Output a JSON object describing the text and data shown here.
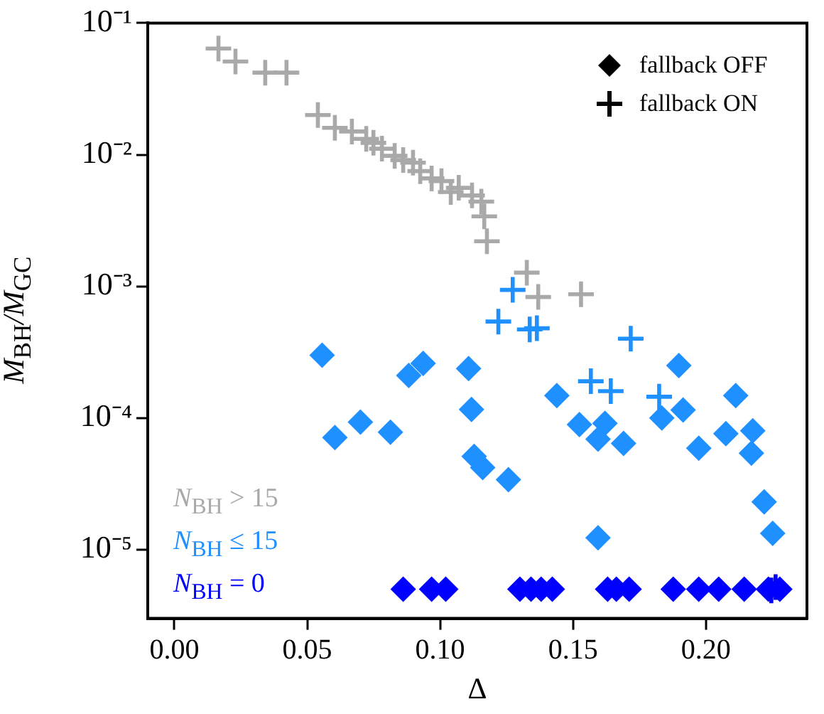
{
  "chart_data": {
    "type": "scatter",
    "xlabel": "Δ",
    "ylabel": "M$_{BH}$/M$_{GC}$",
    "log": "y",
    "xlim": [
      -0.01,
      0.238
    ],
    "ylim": [
      3e-06,
      0.1
    ],
    "xticks": [
      {
        "value": 0,
        "label": "0.00"
      },
      0.05,
      {
        "value": 0.1,
        "label": "0.10"
      },
      0.15,
      {
        "value": 0.2,
        "label": "0.20"
      }
    ],
    "yticks": [
      {
        "value": 1e-05,
        "label": "10⁻⁵"
      },
      {
        "value": 0.0001,
        "label": "10⁻⁴"
      },
      {
        "value": 0.001,
        "label": "10⁻³"
      },
      {
        "value": 0.01,
        "label": "10⁻²"
      },
      {
        "value": 0.1,
        "label": "10⁻¹"
      }
    ],
    "grid": false,
    "legend": false,
    "annotations": [
      "fallback OFF",
      "fallback ON",
      "N$_{BH}$ > 15",
      "N$_{BH}$ ≤ 15",
      "N$_{BH}$ = 0"
    ],
    "series": [
      {
        "color": "#a9a9a9",
        "marker": "cross",
        "x": [
          0.0166,
          0.023,
          0.0342,
          0.0422,
          0.054,
          0.0604,
          0.0668,
          0.0722,
          0.0749,
          0.0781,
          0.0829,
          0.0861,
          0.0898,
          0.0925,
          0.0968,
          0.1005,
          0.104,
          0.107,
          0.112,
          0.1155,
          0.1166,
          0.1176,
          0.1326,
          0.1369,
          0.153
        ],
        "values": [
          0.064,
          0.051,
          0.042,
          0.042,
          0.02,
          0.016,
          0.015,
          0.0132,
          0.0123,
          0.0111,
          0.0098,
          0.0091,
          0.0087,
          0.0075,
          0.0066,
          0.0063,
          0.0052,
          0.0056,
          0.0049,
          0.0044,
          0.0034,
          0.0022,
          0.00127,
          0.00083,
          0.00087
        ]
      },
      {
        "color": "#1e90ff",
        "marker": "cross",
        "x": [
          0.1273,
          0.1219,
          0.1337,
          0.1364,
          0.1717,
          0.1567,
          0.1642,
          0.1824
        ],
        "values": [
          0.00094,
          0.00054,
          0.00047,
          0.00048,
          0.0004,
          0.00019,
          0.00016,
          0.000145
        ]
      },
      {
        "color": "#1e90ff",
        "marker": "diamond",
        "x": [
          0.0556,
          0.0604,
          0.07,
          0.0813,
          0.0882,
          0.0936,
          0.1107,
          0.1118,
          0.1128,
          0.116,
          0.1257,
          0.1439,
          0.1524,
          0.162,
          0.1594,
          0.169,
          0.1594,
          0.1834,
          0.1898,
          0.1914,
          0.1973,
          0.2075,
          0.2112,
          0.2176,
          0.2171,
          0.2219,
          0.2251
        ],
        "values": [
          0.0003,
          7.1e-05,
          9.3e-05,
          7.8e-05,
          0.00021,
          0.00026,
          0.000237,
          0.000116,
          5.1e-05,
          4.2e-05,
          3.4e-05,
          0.000148,
          8.9e-05,
          9.1e-05,
          6.9e-05,
          6.4e-05,
          1.23e-05,
          0.0001,
          0.00025,
          0.000115,
          5.9e-05,
          7.6e-05,
          0.000148,
          8e-05,
          5.4e-05,
          2.3e-05,
          1.33e-05
        ]
      },
      {
        "color": "#0000ff",
        "marker": "diamond",
        "x": [
          0.0861,
          0.0968,
          0.1021,
          0.13,
          0.1342,
          0.138,
          0.1422,
          0.163,
          0.1663,
          0.1711,
          0.1877,
          0.1973,
          0.2048,
          0.2144,
          0.2235,
          0.2278
        ],
        "values": [
          5e-06,
          5e-06,
          5e-06,
          5e-06,
          5e-06,
          5e-06,
          5e-06,
          5e-06,
          5e-06,
          5e-06,
          5e-06,
          5e-06,
          5e-06,
          5e-06,
          5e-06,
          5e-06
        ]
      },
      {
        "color": "#0000ff",
        "marker": "cross",
        "x": [
          0.2246,
          0.2262
        ],
        "values": [
          4.9e-06,
          5.2e-06
        ]
      }
    ]
  }
}
